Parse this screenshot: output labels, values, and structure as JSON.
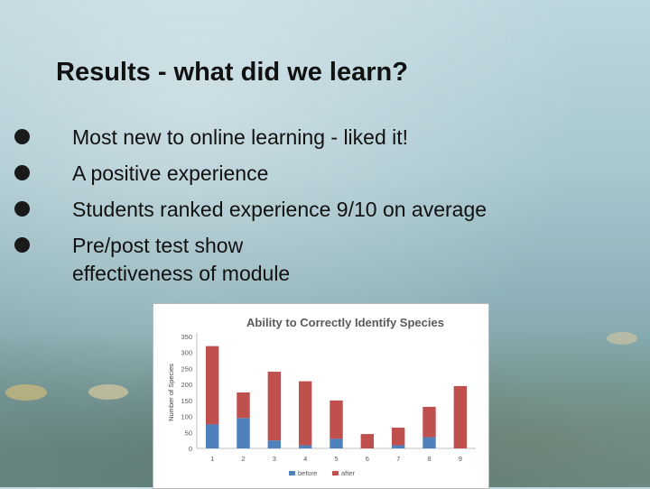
{
  "slide": {
    "title": "Results - what did we learn?",
    "bullets": [
      {
        "text": "Most new to online learning - liked it!"
      },
      {
        "text": "A positive experience"
      },
      {
        "text": "Students ranked experience 9/10 on average"
      },
      {
        "text": "Pre/post test show",
        "continuation": "effectiveness of module"
      }
    ]
  },
  "chart_data": {
    "type": "bar",
    "stacked": true,
    "title": "Ability to Correctly Identify Species",
    "ylabel": "Number of Species",
    "xlabel": "",
    "categories": [
      "1",
      "2",
      "3",
      "4",
      "5",
      "6",
      "7",
      "8",
      "9"
    ],
    "yticks": [
      0,
      50,
      100,
      150,
      200,
      250,
      300,
      350
    ],
    "ylim": [
      0,
      350
    ],
    "grid": false,
    "legend_position": "bottom",
    "series": [
      {
        "name": "before",
        "color": "#4f81bd",
        "values": [
          75,
          95,
          25,
          10,
          30,
          0,
          10,
          35,
          0
        ]
      },
      {
        "name": "after",
        "color": "#c0504d",
        "values": [
          245,
          80,
          215,
          200,
          120,
          45,
          55,
          95,
          195
        ]
      }
    ]
  }
}
